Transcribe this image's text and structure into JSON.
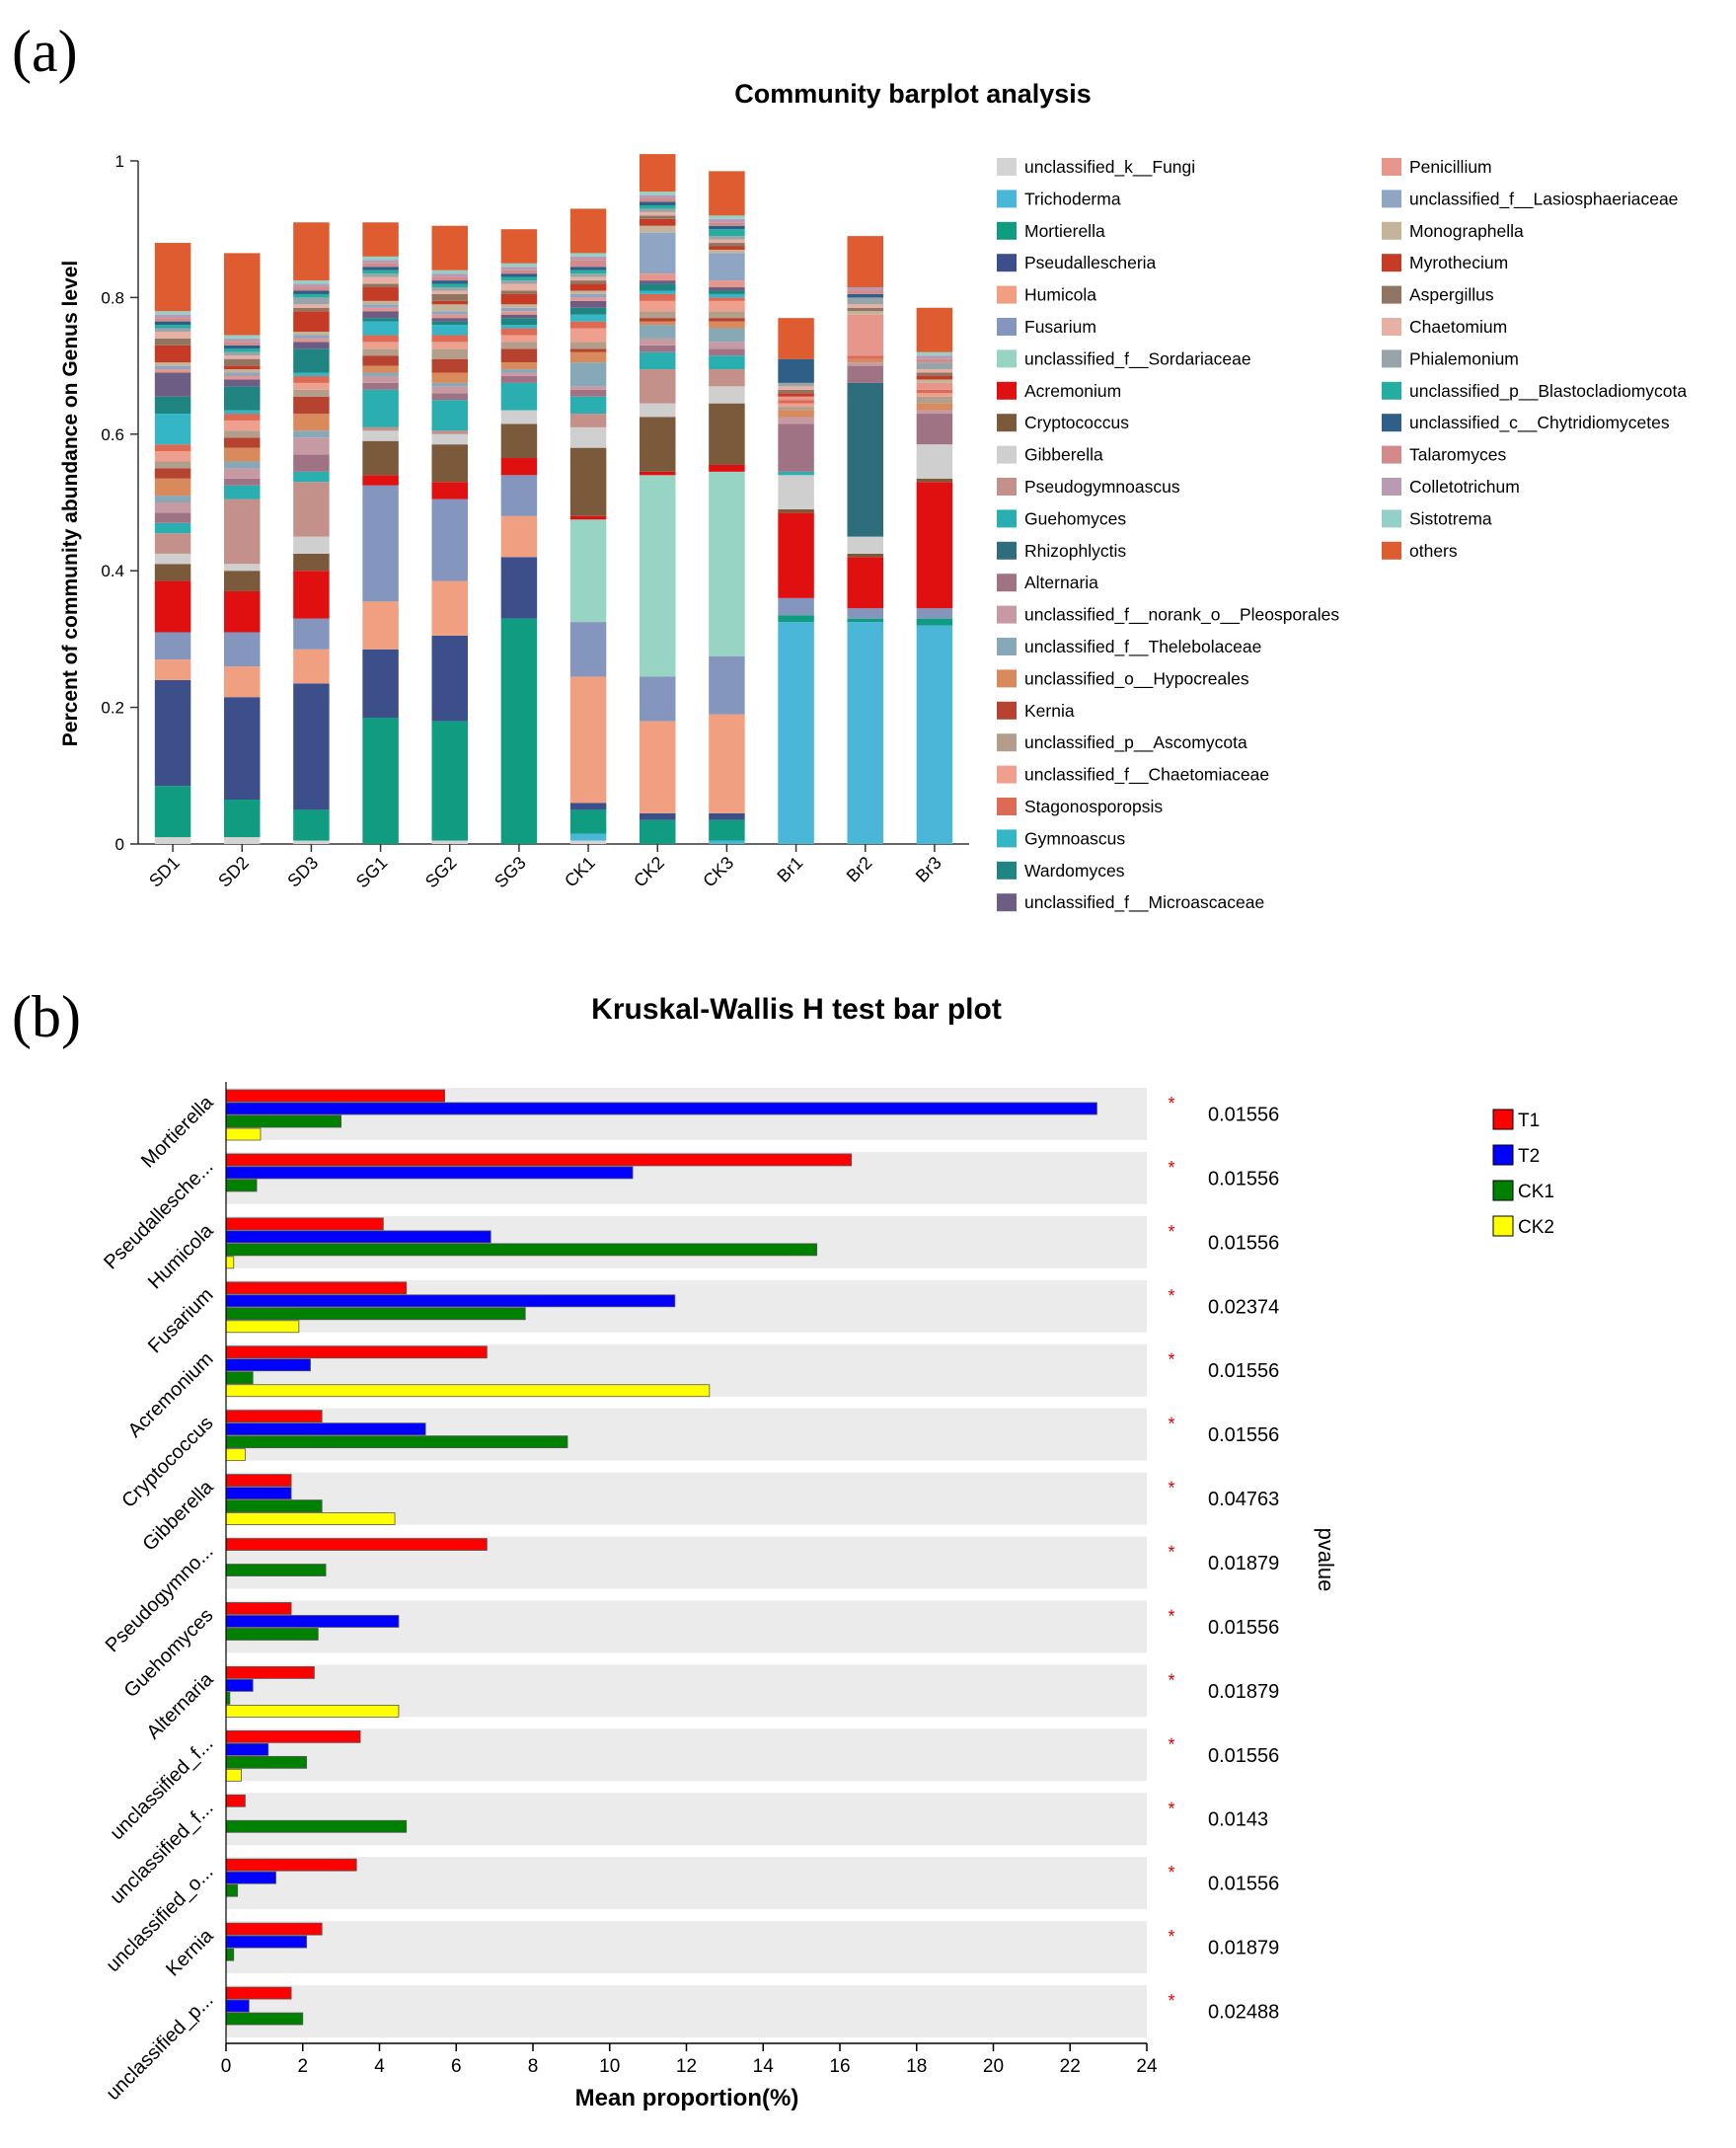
{
  "panel_a": {
    "label": "(a)",
    "chart_data": {
      "type": "bar",
      "stacked": true,
      "title": "Community barplot analysis",
      "ylabel": "Percent of community abundance on Genus level",
      "xlabel": "",
      "ylim": [
        0,
        1
      ],
      "yticks": [
        "0",
        "0.2",
        "0.4",
        "0.6",
        "0.8",
        "1"
      ],
      "categories": [
        "SD1",
        "SD2",
        "SD3",
        "SG1",
        "SG2",
        "SG3",
        "CK1",
        "CK2",
        "CK3",
        "Br1",
        "Br2",
        "Br3"
      ],
      "series": [
        {
          "name": "unclassified_k__Fungi",
          "color": "#d4d4d4",
          "values": [
            0.01,
            0.01,
            0.005,
            0.0,
            0.005,
            0.0,
            0.005,
            0.0,
            0.0,
            0.0,
            0.0,
            0.0
          ]
        },
        {
          "name": "Trichoderma",
          "color": "#4ab6d8",
          "values": [
            0.0,
            0.0,
            0.0,
            0.0,
            0.0,
            0.0,
            0.01,
            0.0,
            0.005,
            0.325,
            0.325,
            0.32
          ]
        },
        {
          "name": "Mortierella",
          "color": "#0f9c80",
          "values": [
            0.075,
            0.055,
            0.045,
            0.185,
            0.175,
            0.33,
            0.035,
            0.035,
            0.03,
            0.01,
            0.005,
            0.01
          ]
        },
        {
          "name": "Pseudallescheria",
          "color": "#3c4f8a",
          "values": [
            0.155,
            0.15,
            0.185,
            0.1,
            0.125,
            0.09,
            0.01,
            0.01,
            0.01,
            0.0,
            0.0,
            0.0
          ]
        },
        {
          "name": "Humicola",
          "color": "#f0a080",
          "values": [
            0.03,
            0.045,
            0.05,
            0.07,
            0.08,
            0.06,
            0.185,
            0.135,
            0.145,
            0.0,
            0.0,
            0.0
          ]
        },
        {
          "name": "Fusarium",
          "color": "#8496be",
          "values": [
            0.04,
            0.05,
            0.045,
            0.17,
            0.12,
            0.06,
            0.08,
            0.065,
            0.085,
            0.025,
            0.015,
            0.015
          ]
        },
        {
          "name": "unclassified_f__Sordariaceae",
          "color": "#97d4c3",
          "values": [
            0.0,
            0.0,
            0.0,
            0.0,
            0.0,
            0.0,
            0.15,
            0.295,
            0.27,
            0.0,
            0.0,
            0.0
          ]
        },
        {
          "name": "Acremonium",
          "color": "#e01010",
          "values": [
            0.075,
            0.06,
            0.07,
            0.015,
            0.025,
            0.025,
            0.005,
            0.005,
            0.01,
            0.125,
            0.075,
            0.185
          ]
        },
        {
          "name": "Cryptococcus",
          "color": "#7b5a3c",
          "values": [
            0.025,
            0.03,
            0.025,
            0.05,
            0.055,
            0.05,
            0.1,
            0.08,
            0.09,
            0.005,
            0.005,
            0.005
          ]
        },
        {
          "name": "Gibberella",
          "color": "#cfcfcf",
          "values": [
            0.015,
            0.01,
            0.025,
            0.015,
            0.015,
            0.02,
            0.03,
            0.02,
            0.025,
            0.05,
            0.025,
            0.05
          ]
        },
        {
          "name": "Pseudogymnoascus",
          "color": "#c4918a",
          "values": [
            0.03,
            0.095,
            0.08,
            0.005,
            0.005,
            0.0,
            0.02,
            0.05,
            0.025,
            0.0,
            0.0,
            0.0
          ]
        },
        {
          "name": "Guehomyces",
          "color": "#2aaeb0",
          "values": [
            0.015,
            0.02,
            0.015,
            0.055,
            0.045,
            0.04,
            0.025,
            0.025,
            0.02,
            0.005,
            0.0,
            0.0
          ]
        },
        {
          "name": "Rhizophlyctis",
          "color": "#2e6e7c",
          "values": [
            0.0,
            0.0,
            0.0,
            0.0,
            0.0,
            0.0,
            0.0,
            0.0,
            0.0,
            0.0,
            0.225,
            0.0
          ]
        },
        {
          "name": "Alternaria",
          "color": "#a07384",
          "values": [
            0.015,
            0.01,
            0.025,
            0.01,
            0.01,
            0.01,
            0.01,
            0.01,
            0.01,
            0.07,
            0.025,
            0.045
          ]
        },
        {
          "name": "unclassified_f__norank_o__Pleosporales",
          "color": "#c79aa3",
          "values": [
            0.015,
            0.015,
            0.025,
            0.01,
            0.01,
            0.005,
            0.005,
            0.01,
            0.01,
            0.01,
            0.005,
            0.005
          ]
        },
        {
          "name": "unclassified_f__Thelebolaceae",
          "color": "#87a8b6",
          "values": [
            0.01,
            0.01,
            0.01,
            0.005,
            0.005,
            0.005,
            0.035,
            0.02,
            0.02,
            0.0,
            0.0,
            0.0
          ]
        },
        {
          "name": "unclassified_o__Hypocreales",
          "color": "#d98a5c",
          "values": [
            0.025,
            0.02,
            0.025,
            0.01,
            0.015,
            0.01,
            0.015,
            0.005,
            0.01,
            0.01,
            0.005,
            0.01
          ]
        },
        {
          "name": "Kernia",
          "color": "#b64330",
          "values": [
            0.015,
            0.015,
            0.025,
            0.015,
            0.02,
            0.02,
            0.005,
            0.005,
            0.005,
            0.0,
            0.0,
            0.0
          ]
        },
        {
          "name": "unclassified_p__Ascomycota",
          "color": "#b29e8a",
          "values": [
            0.01,
            0.01,
            0.01,
            0.01,
            0.015,
            0.01,
            0.01,
            0.01,
            0.01,
            0.005,
            0.0,
            0.01
          ]
        },
        {
          "name": "unclassified_f__Chaetomiaceae",
          "color": "#ee9f8d",
          "values": [
            0.015,
            0.015,
            0.01,
            0.01,
            0.01,
            0.01,
            0.02,
            0.015,
            0.015,
            0.005,
            0.0,
            0.005
          ]
        },
        {
          "name": "Stagonosporopsis",
          "color": "#dd6a55",
          "values": [
            0.01,
            0.01,
            0.01,
            0.01,
            0.01,
            0.01,
            0.01,
            0.01,
            0.005,
            0.005,
            0.005,
            0.005
          ]
        },
        {
          "name": "Gymnoascus",
          "color": "#35b6c6",
          "values": [
            0.045,
            0.005,
            0.005,
            0.02,
            0.015,
            0.005,
            0.01,
            0.005,
            0.005,
            0.0,
            0.0,
            0.0
          ]
        },
        {
          "name": "Wardomyces",
          "color": "#208580",
          "values": [
            0.025,
            0.035,
            0.035,
            0.005,
            0.005,
            0.01,
            0.01,
            0.01,
            0.005,
            0.0,
            0.0,
            0.0
          ]
        },
        {
          "name": "unclassified_f__Microascaceae",
          "color": "#6d5d84",
          "values": [
            0.035,
            0.01,
            0.01,
            0.01,
            0.005,
            0.005,
            0.01,
            0.005,
            0.005,
            0.0,
            0.0,
            0.0
          ]
        },
        {
          "name": "Penicillium",
          "color": "#e6968a",
          "values": [
            0.005,
            0.005,
            0.005,
            0.005,
            0.005,
            0.005,
            0.005,
            0.01,
            0.01,
            0.005,
            0.06,
            0.01
          ]
        },
        {
          "name": "unclassified_f__Lasiosphaeriaceae",
          "color": "#8ea6c4",
          "values": [
            0.005,
            0.005,
            0.005,
            0.005,
            0.005,
            0.005,
            0.005,
            0.06,
            0.04,
            0.0,
            0.0,
            0.0
          ]
        },
        {
          "name": "Monographella",
          "color": "#c4b49a",
          "values": [
            0.005,
            0.005,
            0.005,
            0.005,
            0.01,
            0.005,
            0.005,
            0.01,
            0.005,
            0.0,
            0.005,
            0.005
          ]
        },
        {
          "name": "Myrothecium",
          "color": "#c63b26",
          "values": [
            0.025,
            0.005,
            0.03,
            0.02,
            0.005,
            0.015,
            0.01,
            0.01,
            0.005,
            0.005,
            0.0,
            0.005
          ]
        },
        {
          "name": "Aspergillus",
          "color": "#917563",
          "values": [
            0.01,
            0.01,
            0.005,
            0.005,
            0.01,
            0.005,
            0.005,
            0.005,
            0.005,
            0.005,
            0.005,
            0.005
          ]
        },
        {
          "name": "Chaetomium",
          "color": "#e6b0a4",
          "values": [
            0.01,
            0.005,
            0.005,
            0.01,
            0.005,
            0.01,
            0.005,
            0.005,
            0.005,
            0.005,
            0.005,
            0.005
          ]
        },
        {
          "name": "Phialemonium",
          "color": "#98a4a8",
          "values": [
            0.005,
            0.005,
            0.01,
            0.005,
            0.005,
            0.005,
            0.005,
            0.005,
            0.005,
            0.005,
            0.01,
            0.01
          ]
        },
        {
          "name": "unclassified_p__Blastocladiomycota",
          "color": "#23aea0",
          "values": [
            0.005,
            0.005,
            0.005,
            0.005,
            0.005,
            0.005,
            0.005,
            0.005,
            0.01,
            0.0,
            0.0,
            0.0
          ]
        },
        {
          "name": "unclassified_c__Chytridiomycetes",
          "color": "#2f5e86",
          "values": [
            0.005,
            0.005,
            0.005,
            0.005,
            0.005,
            0.005,
            0.005,
            0.005,
            0.005,
            0.035,
            0.005,
            0.0
          ]
        },
        {
          "name": "Talaromyces",
          "color": "#d48a8a",
          "values": [
            0.005,
            0.005,
            0.005,
            0.005,
            0.005,
            0.005,
            0.01,
            0.005,
            0.005,
            0.0,
            0.005,
            0.005
          ]
        },
        {
          "name": "Colletotrichum",
          "color": "#b89ab2",
          "values": [
            0.005,
            0.005,
            0.005,
            0.005,
            0.005,
            0.005,
            0.005,
            0.005,
            0.005,
            0.0,
            0.005,
            0.005
          ]
        },
        {
          "name": "Sistotrema",
          "color": "#94d0c8",
          "values": [
            0.005,
            0.005,
            0.005,
            0.005,
            0.005,
            0.005,
            0.005,
            0.005,
            0.005,
            0.0,
            0.0,
            0.005
          ]
        },
        {
          "name": "others",
          "color": "#de5c30",
          "values": [
            0.1,
            0.12,
            0.085,
            0.05,
            0.065,
            0.05,
            0.065,
            0.055,
            0.065,
            0.06,
            0.075,
            0.065
          ]
        }
      ]
    }
  },
  "panel_b": {
    "label": "(b)",
    "chart_data": {
      "type": "bar",
      "orientation": "horizontal",
      "title": "Kruskal-Wallis H test bar plot",
      "xlabel": "Mean proportion(%)",
      "right_axis_label": "pvalue",
      "xlim": [
        0,
        24
      ],
      "xticks": [
        "0",
        "2",
        "4",
        "6",
        "8",
        "10",
        "12",
        "14",
        "16",
        "18",
        "20",
        "22",
        "24"
      ],
      "categories": [
        "Mortierella",
        "Pseudallesche...",
        "Humicola",
        "Fusarium",
        "Acremonium",
        "Cryptococcus",
        "Gibberella",
        "Pseudogymno...",
        "Guehomyces",
        "Alternaria",
        "unclassified_f...",
        "unclassified_f...",
        "unclassified_o...",
        "Kernia",
        "unclassified_p..."
      ],
      "significance": [
        "*",
        "*",
        "*",
        "*",
        "*",
        "*",
        "*",
        "*",
        "*",
        "*",
        "*",
        "*",
        "*",
        "*",
        "*"
      ],
      "pvalues": [
        "0.01556",
        "0.01556",
        "0.01556",
        "0.02374",
        "0.01556",
        "0.01556",
        "0.04763",
        "0.01879",
        "0.01556",
        "0.01879",
        "0.01556",
        "0.0143",
        "0.01556",
        "0.01879",
        "0.02488"
      ],
      "series": [
        {
          "name": "T1",
          "color": "#ff0000",
          "values": [
            5.7,
            16.3,
            4.1,
            4.7,
            6.8,
            2.5,
            1.7,
            6.8,
            1.7,
            2.3,
            3.5,
            0.5,
            3.4,
            2.5,
            1.7
          ]
        },
        {
          "name": "T2",
          "color": "#0000ff",
          "values": [
            22.7,
            10.6,
            6.9,
            11.7,
            2.2,
            5.2,
            1.7,
            0.0,
            4.5,
            0.7,
            1.1,
            0.0,
            1.3,
            2.1,
            0.6
          ]
        },
        {
          "name": "CK1",
          "color": "#008000",
          "values": [
            3.0,
            0.8,
            15.4,
            7.8,
            0.7,
            8.9,
            2.5,
            2.6,
            2.4,
            0.1,
            2.1,
            4.7,
            0.3,
            0.2,
            2.0
          ]
        },
        {
          "name": "CK2",
          "color": "#ffff00",
          "values": [
            0.9,
            0.0,
            0.2,
            1.9,
            12.6,
            0.5,
            4.4,
            0.0,
            0.0,
            4.5,
            0.4,
            0.0,
            0.0,
            0.0,
            0.0
          ]
        }
      ]
    }
  }
}
